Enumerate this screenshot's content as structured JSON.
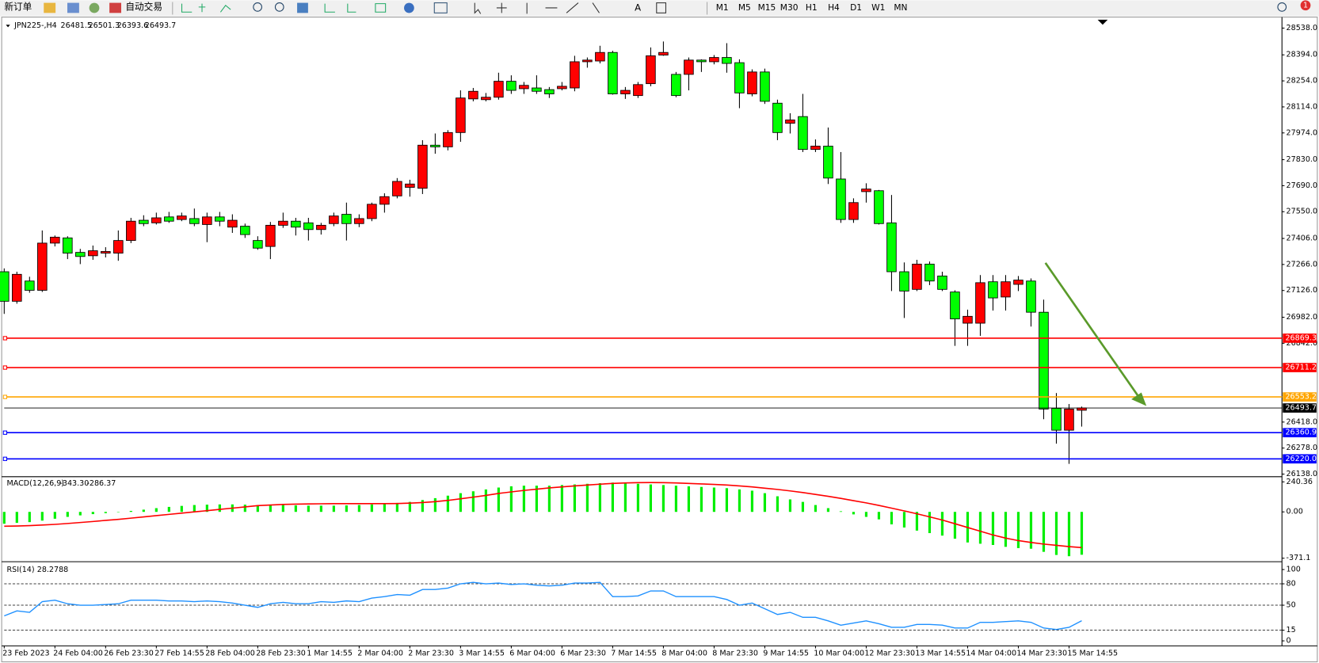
{
  "toolbar": {
    "new_order": "新订单",
    "auto_trading": "自动交易",
    "periods": [
      "M1",
      "M5",
      "M15",
      "M30",
      "H1",
      "H4",
      "D1",
      "W1",
      "MN"
    ],
    "notifications": 1
  },
  "chart_data": [
    {
      "type": "candlestick",
      "title": "JPN225-,H4",
      "categories": [
        "23 Feb 2023",
        null,
        null,
        null,
        "24 Feb 04:00",
        null,
        null,
        null,
        "26 Feb 23:30",
        null,
        null,
        null,
        "27 Feb 14:55",
        null,
        null,
        null,
        "28 Feb 04:00",
        null,
        null,
        null,
        "28 Feb 23:30",
        null,
        null,
        null,
        "1 Mar 14:55",
        null,
        null,
        null,
        "2 Mar 04:00",
        null,
        null,
        null,
        "2 Mar 23:30",
        null,
        null,
        null,
        "3 Mar 14:55",
        null,
        null,
        null,
        "6 Mar 04:00",
        null,
        null,
        null,
        "6 Mar 23:30",
        null,
        null,
        null,
        "7 Mar 14:55",
        null,
        null,
        null,
        "8 Mar 04:00",
        null,
        null,
        null,
        "8 Mar 23:30",
        null,
        null,
        null,
        "9 Mar 14:55",
        null,
        null,
        null,
        "10 Mar 04:00",
        null,
        null,
        null,
        "12 Mar 23:30",
        null,
        null,
        null,
        "13 Mar 14:55",
        null,
        null,
        null,
        "14 Mar 04:00",
        null,
        null,
        null,
        "14 Mar 23:30",
        null,
        null,
        null,
        "15 Mar 14:55",
        null
      ],
      "candles": [
        [
          27227,
          27245,
          27000,
          27068
        ],
        [
          27068,
          27227,
          27055,
          27213
        ],
        [
          27177,
          27200,
          27114,
          27127
        ],
        [
          27127,
          27449,
          27118,
          27381
        ],
        [
          27381,
          27422,
          27363,
          27413
        ],
        [
          27409,
          27418,
          27295,
          27327
        ],
        [
          27331,
          27350,
          27268,
          27309
        ],
        [
          27313,
          27368,
          27291,
          27340
        ],
        [
          27327,
          27359,
          27304,
          27336
        ],
        [
          27327,
          27449,
          27286,
          27395
        ],
        [
          27395,
          27517,
          27381,
          27499
        ],
        [
          27504,
          27531,
          27472,
          27486
        ],
        [
          27490,
          27545,
          27481,
          27517
        ],
        [
          27522,
          27549,
          27490,
          27499
        ],
        [
          27508,
          27545,
          27499,
          27527
        ],
        [
          27513,
          27567,
          27472,
          27486
        ],
        [
          27481,
          27545,
          27386,
          27522
        ],
        [
          27522,
          27549,
          27472,
          27499
        ],
        [
          27467,
          27536,
          27436,
          27504
        ],
        [
          27472,
          27486,
          27409,
          27427
        ],
        [
          27395,
          27418,
          27345,
          27354
        ],
        [
          27363,
          27495,
          27295,
          27477
        ],
        [
          27477,
          27545,
          27463,
          27499
        ],
        [
          27499,
          27517,
          27422,
          27467
        ],
        [
          27490,
          27517,
          27395,
          27454
        ],
        [
          27454,
          27490,
          27427,
          27477
        ],
        [
          27486,
          27545,
          27472,
          27527
        ],
        [
          27536,
          27599,
          27395,
          27486
        ],
        [
          27486,
          27536,
          27467,
          27513
        ],
        [
          27513,
          27599,
          27499,
          27590
        ],
        [
          27590,
          27649,
          27545,
          27631
        ],
        [
          27635,
          27731,
          27622,
          27713
        ],
        [
          27681,
          27722,
          27631,
          27699
        ],
        [
          27676,
          27935,
          27645,
          27908
        ],
        [
          27908,
          27971,
          27862,
          27899
        ],
        [
          27899,
          27989,
          27880,
          27976
        ],
        [
          27976,
          28203,
          27926,
          28162
        ],
        [
          28157,
          28216,
          28144,
          28198
        ],
        [
          28153,
          28189,
          28144,
          28166
        ],
        [
          28166,
          28298,
          28153,
          28252
        ],
        [
          28252,
          28284,
          28184,
          28203
        ],
        [
          28212,
          28248,
          28184,
          28230
        ],
        [
          28216,
          28284,
          28184,
          28198
        ],
        [
          28207,
          28221,
          28162,
          28184
        ],
        [
          28212,
          28248,
          28203,
          28225
        ],
        [
          28216,
          28389,
          28198,
          28357
        ],
        [
          28357,
          28380,
          28325,
          28366
        ],
        [
          28361,
          28443,
          28348,
          28407
        ],
        [
          28407,
          28416,
          28180,
          28184
        ],
        [
          28184,
          28221,
          28157,
          28203
        ],
        [
          28175,
          28248,
          28162,
          28234
        ],
        [
          28239,
          28434,
          28225,
          28389
        ],
        [
          28393,
          28466,
          28389,
          28407
        ],
        [
          28289,
          28302,
          28166,
          28175
        ],
        [
          28289,
          28380,
          28203,
          28366
        ],
        [
          28366,
          28370,
          28302,
          28357
        ],
        [
          28357,
          28393,
          28343,
          28380
        ],
        [
          28380,
          28457,
          28298,
          28348
        ],
        [
          28352,
          28370,
          28107,
          28189
        ],
        [
          28184,
          28316,
          28171,
          28302
        ],
        [
          28302,
          28320,
          28130,
          28144
        ],
        [
          28134,
          28153,
          27935,
          27976
        ],
        [
          28026,
          28080,
          27971,
          28044
        ],
        [
          28062,
          28184,
          27871,
          27885
        ],
        [
          27885,
          27939,
          27871,
          27903
        ],
        [
          27903,
          28003,
          27699,
          27731
        ],
        [
          27726,
          27871,
          27490,
          27508
        ],
        [
          27508,
          27622,
          27490,
          27599
        ],
        [
          27658,
          27703,
          27599,
          27672
        ],
        [
          27663,
          27667,
          27481,
          27486
        ],
        [
          27490,
          27640,
          27123,
          27227
        ],
        [
          27227,
          27277,
          26978,
          27123
        ],
        [
          27132,
          27291,
          27123,
          27268
        ],
        [
          27268,
          27282,
          27155,
          27177
        ],
        [
          27204,
          27227,
          27123,
          27132
        ],
        [
          27118,
          27127,
          26828,
          26973
        ],
        [
          26950,
          27023,
          26828,
          26987
        ],
        [
          26950,
          27209,
          26882,
          27168
        ],
        [
          27173,
          27209,
          27018,
          27086
        ],
        [
          27091,
          27209,
          27018,
          27173
        ],
        [
          27159,
          27204,
          27123,
          27182
        ],
        [
          27177,
          27191,
          26932,
          27009
        ],
        [
          27009,
          27077,
          26433,
          26488
        ],
        [
          26492,
          26574,
          26302,
          26374
        ],
        [
          26374,
          26515,
          26193,
          26488
        ],
        [
          26481.5,
          26501.3,
          26393.6,
          26493.7
        ]
      ],
      "colors": {
        "up": "#ff0000",
        "down": "#00ff00",
        "outline": "#000000"
      },
      "ylim": [
        26124,
        28597
      ],
      "yticks": [
        {
          "value": 28538,
          "label": "28538.0"
        },
        {
          "value": 28394,
          "label": "28394.0"
        },
        {
          "value": 28254,
          "label": "28254.0"
        },
        {
          "value": 28114,
          "label": "28114.0"
        },
        {
          "value": 27974,
          "label": "27974.0"
        },
        {
          "value": 27830,
          "label": "27830.0"
        },
        {
          "value": 27690,
          "label": "27690.0"
        },
        {
          "value": 27550,
          "label": "27550.0"
        },
        {
          "value": 27406,
          "label": "27406.0"
        },
        {
          "value": 27266,
          "label": "27266.0"
        },
        {
          "value": 27126,
          "label": "27126.0"
        },
        {
          "value": 26982,
          "label": "26982.0"
        },
        {
          "value": 26842,
          "label": "26842.0"
        },
        {
          "value": 26418,
          "label": "26418.0"
        },
        {
          "value": 26278,
          "label": "26278.0"
        },
        {
          "value": 26138,
          "label": "26138.0"
        }
      ],
      "levels": [
        {
          "price": 26869.3,
          "color": "#ff0000"
        },
        {
          "price": 26711.2,
          "color": "#ff0000"
        },
        {
          "price": 26553.2,
          "color": "#ffa500"
        },
        {
          "price": 26360.9,
          "color": "#0000ff"
        },
        {
          "price": {
            "value": 26220,
            "label": "26220.0"
          },
          "color": "#0000ff"
        }
      ],
      "current_price_color": "#000000"
    },
    {
      "type": "macd",
      "title": "MACD(12,26,9)",
      "readout": [
        {
          "value": -343.3,
          "label": "-343.30"
        },
        -286.37
      ],
      "values": [
        -95,
        -88,
        -82,
        -70,
        -55,
        -40,
        -28,
        -18,
        -10,
        -3,
        8,
        18,
        30,
        40,
        48,
        55,
        58,
        60,
        60,
        58,
        55,
        55,
        55,
        52,
        50,
        50,
        50,
        52,
        55,
        60,
        65,
        72,
        80,
        95,
        110,
        130,
        150,
        165,
        180,
        195,
        205,
        210,
        210,
        210,
        215,
        220,
        225,
        230,
        235,
        230,
        225,
        220,
        215,
        210,
        205,
        200,
        195,
        190,
        180,
        170,
        150,
        125,
        100,
        80,
        55,
        30,
        5,
        -20,
        -40,
        -60,
        -100,
        -125,
        -150,
        -170,
        -190,
        -215,
        -245,
        -255,
        -265,
        -280,
        -290,
        -295,
        -320,
        -345,
        -355,
        -343.3
      ],
      "signal": [
        -115,
        -113,
        -110,
        -105,
        -100,
        -93,
        -85,
        -77,
        -68,
        -60,
        -50,
        -40,
        -30,
        -20,
        -10,
        0,
        10,
        20,
        30,
        40,
        50,
        55,
        60,
        62,
        64,
        65,
        66,
        66,
        66,
        66,
        66,
        67,
        70,
        75,
        82,
        92,
        105,
        118,
        132,
        148,
        160,
        172,
        182,
        192,
        200,
        208,
        215,
        222,
        228,
        232,
        234,
        235,
        234,
        232,
        228,
        224,
        220,
        215,
        208,
        200,
        190,
        180,
        168,
        155,
        140,
        125,
        108,
        90,
        72,
        52,
        30,
        8,
        -15,
        -40,
        -65,
        -95,
        -125,
        -155,
        -185,
        -210,
        -230,
        -245,
        -258,
        -268,
        -278,
        -286.37
      ],
      "colors": {
        "histogram": "#00ee00",
        "signal": "#ff0000"
      },
      "ylim": [
        -399,
        282
      ],
      "yticks": [
        240.36,
        {
          "value": 0,
          "label": "0.00"
        },
        -371.1
      ]
    },
    {
      "type": "rsi",
      "title": "RSI(14)",
      "values": [
        35,
        42,
        40,
        55,
        57,
        52,
        50,
        50,
        51,
        52,
        57,
        57,
        57,
        56,
        56,
        55,
        56,
        55,
        53,
        50,
        47,
        52,
        54,
        52,
        52,
        55,
        54,
        56,
        55,
        60,
        62,
        65,
        64,
        72,
        72,
        74,
        80,
        82,
        80,
        81,
        79,
        80,
        78,
        77,
        78,
        81,
        81,
        82,
        62,
        62,
        63,
        70,
        70,
        62,
        62,
        62,
        62,
        58,
        50,
        53,
        45,
        37,
        40,
        33,
        33,
        28,
        22,
        25,
        28,
        24,
        19,
        19,
        23,
        23,
        22,
        18,
        18,
        26,
        26,
        27,
        28,
        26,
        18,
        16,
        19,
        28.2788
      ],
      "color": "#1e90ff",
      "ylim": [
        -7,
        111
      ],
      "yticks": [
        100,
        80,
        50,
        15,
        0
      ],
      "levels": [
        80,
        50,
        15
      ]
    }
  ]
}
